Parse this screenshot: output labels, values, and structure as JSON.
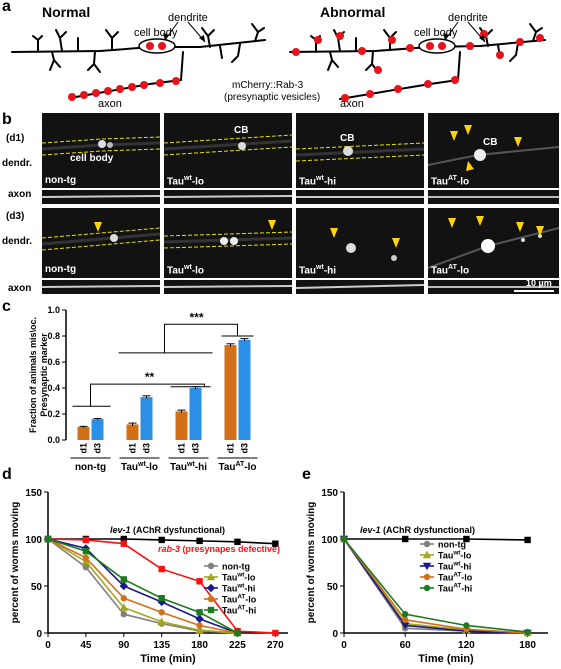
{
  "panel_a": {
    "letter": "a",
    "normal_title": "Normal",
    "abnormal_title": "Abnormal",
    "dendrite_label": "dendrite",
    "cell_body_label": "cell body",
    "axon_label": "axon",
    "marker_label_line1": "mCherry::Rab-3",
    "marker_label_line2": "(presynaptic vesicles)"
  },
  "panel_b": {
    "letter": "b",
    "row_d1": "(d1)",
    "row_d3": "(d3)",
    "dendr_label": "dendr.",
    "axon_label": "axon",
    "cell_body": "cell body",
    "cb": "CB",
    "scale_bar": "10 µm",
    "strains": [
      {
        "base": "non-tg",
        "sup": "",
        "suffix": ""
      },
      {
        "base": "Tau",
        "sup": "wt",
        "suffix": "-lo"
      },
      {
        "base": "Tau",
        "sup": "wt",
        "suffix": "-hi"
      },
      {
        "base": "Tau",
        "sup": "AT",
        "suffix": "-lo"
      }
    ],
    "colors": {
      "arrow": "#ffd400",
      "outline": "#e8e000"
    }
  },
  "panel_c": {
    "letter": "c",
    "significance": [
      "**",
      "***"
    ],
    "chart_data": {
      "type": "bar",
      "ylabel_line1": "Fraction of animals mis\\oc.",
      "ylabel_line2": "Presynaptic marker",
      "ylim": [
        0,
        1.0
      ],
      "yticks": [
        "0.0",
        "0.2",
        "0.4",
        "0.6",
        "0.8",
        "1.0"
      ],
      "groups": [
        "non-tg",
        "Tau^wt-lo",
        "Tau^wt-hi",
        "Tau^AT-lo"
      ],
      "group_labels": [
        {
          "base": "non-tg",
          "sup": "",
          "suffix": ""
        },
        {
          "base": "Tau",
          "sup": "wt",
          "suffix": "-lo"
        },
        {
          "base": "Tau",
          "sup": "wt",
          "suffix": "-hi"
        },
        {
          "base": "Tau",
          "sup": "AT",
          "suffix": "-lo"
        }
      ],
      "series": [
        {
          "name": "d1",
          "color": "#d27018",
          "values": [
            0.1,
            0.12,
            0.22,
            0.73
          ]
        },
        {
          "name": "d3",
          "color": "#2b8fe6",
          "values": [
            0.16,
            0.33,
            0.4,
            0.77
          ]
        }
      ],
      "errors": [
        [
          0.005,
          0.01,
          0.01,
          0.01
        ],
        [
          0.005,
          0.01,
          0.01,
          0.01
        ]
      ]
    }
  },
  "panel_d": {
    "letter": "d",
    "annotation_lev": "lev-1",
    "annotation_lev_rest": " (AChR dysfunctional)",
    "annotation_rab": "rab-3",
    "annotation_rab_rest": " (presynapes defective)",
    "chart_data": {
      "type": "line",
      "xlabel": "Time (min)",
      "ylabel": "percent of worms moving",
      "xlim": [
        0,
        285
      ],
      "ylim": [
        0,
        150
      ],
      "xticks": [
        0,
        45,
        90,
        135,
        180,
        225,
        270
      ],
      "yticks": [
        0,
        50,
        100,
        150
      ],
      "series": [
        {
          "name": "lev-1",
          "color": "#000000",
          "marker": "square",
          "x": [
            0,
            45,
            90,
            135,
            180,
            225,
            270
          ],
          "y": [
            100,
            100,
            100,
            99,
            98,
            97,
            95
          ]
        },
        {
          "name": "rab-3",
          "color": "#ff1010",
          "marker": "square",
          "x": [
            0,
            45,
            90,
            135,
            180,
            225,
            270
          ],
          "y": [
            100,
            99,
            95,
            68,
            55,
            2,
            0
          ]
        },
        {
          "name": "non-tg",
          "label": {
            "base": "non-tg",
            "sup": "",
            "suffix": ""
          },
          "color": "#808080",
          "marker": "circle",
          "x": [
            0,
            45,
            90,
            135,
            180,
            225
          ],
          "y": [
            100,
            70,
            20,
            10,
            2,
            0
          ]
        },
        {
          "name": "Tau^wt-lo",
          "label": {
            "base": "Tau",
            "sup": "wt",
            "suffix": "-lo"
          },
          "color": "#a6a51e",
          "marker": "triangle",
          "x": [
            0,
            45,
            90,
            135,
            180,
            225
          ],
          "y": [
            100,
            76,
            27,
            12,
            3,
            0
          ]
        },
        {
          "name": "Tau^wt-hi",
          "label": {
            "base": "Tau",
            "sup": "wt",
            "suffix": "-hi"
          },
          "color": "#1a1a8c",
          "marker": "diamond",
          "x": [
            0,
            45,
            90,
            135,
            180,
            225
          ],
          "y": [
            100,
            90,
            50,
            33,
            15,
            0
          ]
        },
        {
          "name": "Tau^AT-lo",
          "label": {
            "base": "Tau",
            "sup": "AT",
            "suffix": "-lo"
          },
          "color": "#d27018",
          "marker": "circle",
          "x": [
            0,
            45,
            90,
            135,
            180,
            225
          ],
          "y": [
            100,
            80,
            37,
            22,
            8,
            0
          ]
        },
        {
          "name": "Tau^AT-hi",
          "label": {
            "base": "Tau",
            "sup": "AT",
            "suffix": "-hi"
          },
          "color": "#1e7a1e",
          "marker": "square",
          "x": [
            0,
            45,
            90,
            135,
            180,
            225
          ],
          "y": [
            100,
            87,
            57,
            37,
            22,
            0
          ]
        }
      ]
    }
  },
  "panel_e": {
    "letter": "e",
    "annotation_lev": "lev-1",
    "annotation_lev_rest": " (AChR dysfunctional)",
    "chart_data": {
      "type": "line",
      "xlabel": "Time (min)",
      "ylabel": "percent of worms moving",
      "xlim": [
        0,
        200
      ],
      "ylim": [
        0,
        150
      ],
      "xticks": [
        0,
        60,
        120,
        180
      ],
      "yticks": [
        0,
        50,
        100,
        150
      ],
      "series": [
        {
          "name": "lev-1",
          "color": "#000000",
          "marker": "square",
          "x": [
            0,
            60,
            120,
            180
          ],
          "y": [
            100,
            100,
            100,
            99
          ]
        },
        {
          "name": "non-tg",
          "label": {
            "base": "non-tg",
            "sup": "",
            "suffix": ""
          },
          "color": "#808080",
          "marker": "circle",
          "x": [
            0,
            60,
            120,
            180
          ],
          "y": [
            100,
            5,
            2,
            0
          ]
        },
        {
          "name": "Tau^wt-lo",
          "label": {
            "base": "Tau",
            "sup": "wt",
            "suffix": "-lo"
          },
          "color": "#a6a51e",
          "marker": "triangle",
          "x": [
            0,
            60,
            120,
            180
          ],
          "y": [
            100,
            10,
            3,
            0
          ]
        },
        {
          "name": "Tau^wt-hi",
          "label": {
            "base": "Tau",
            "sup": "wt",
            "suffix": "-hi"
          },
          "color": "#1a1a8c",
          "marker": "triangle-down",
          "x": [
            0,
            60,
            120,
            180
          ],
          "y": [
            100,
            8,
            2,
            0
          ]
        },
        {
          "name": "Tau^AT-lo",
          "label": {
            "base": "Tau",
            "sup": "AT",
            "suffix": "-lo"
          },
          "color": "#d27018",
          "marker": "circle",
          "x": [
            0,
            60,
            120,
            180
          ],
          "y": [
            100,
            14,
            4,
            0
          ]
        },
        {
          "name": "Tau^AT-hi",
          "label": {
            "base": "Tau",
            "sup": "AT",
            "suffix": "-hi"
          },
          "color": "#1e7a1e",
          "marker": "circle",
          "x": [
            0,
            60,
            120,
            180
          ],
          "y": [
            100,
            20,
            8,
            1
          ]
        }
      ]
    }
  }
}
